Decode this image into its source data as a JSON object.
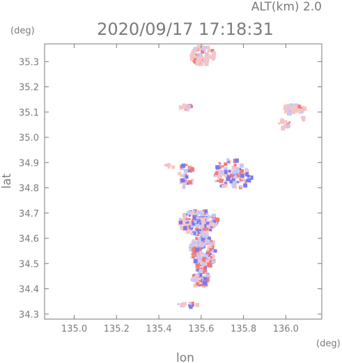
{
  "header": {
    "altitude_label": "ALT(km) 2.0",
    "timestamp": "2020/09/17 17:18:31"
  },
  "chart_data": {
    "type": "heatmap",
    "title": "2020/09/17 17:18:31",
    "subtitle": "ALT(km) 2.0",
    "xlabel": "lon",
    "ylabel": "lat",
    "xunit": "(deg)",
    "yunit": "(deg)",
    "xlim": [
      134.86,
      136.17
    ],
    "ylim": [
      34.28,
      35.37
    ],
    "xticks": [
      135.0,
      135.2,
      135.4,
      135.6,
      135.8,
      136.0
    ],
    "xtick_labels": [
      "135.0",
      "135.2",
      "135.4",
      "135.6",
      "135.8",
      "136.0"
    ],
    "yticks": [
      34.3,
      34.4,
      34.5,
      34.6,
      34.7,
      34.8,
      34.9,
      35.0,
      35.1,
      35.2,
      35.3
    ],
    "ytick_labels": [
      "34.3",
      "34.4",
      "34.5",
      "34.6",
      "34.7",
      "34.8",
      "34.9",
      "35.0",
      "35.1",
      "35.2",
      "35.3"
    ],
    "grid": false,
    "colors": {
      "positive": "#f07a7a",
      "light_positive": "#f6c4c4",
      "negative": "#7a7aee",
      "light_negative": "#c8c8f6",
      "axis": "#7a7a7a"
    },
    "clusters": [
      {
        "lon": 135.6,
        "lat": 35.33,
        "rx": 0.055,
        "ry": 0.04,
        "n": 90,
        "bias": 0.8,
        "speckle": 0.12
      },
      {
        "lon": 135.52,
        "lat": 35.125,
        "rx": 0.03,
        "ry": 0.01,
        "n": 12,
        "bias": 0.8,
        "speckle": 0.1
      },
      {
        "lon": 136.03,
        "lat": 35.12,
        "rx": 0.05,
        "ry": 0.02,
        "n": 50,
        "bias": 0.85,
        "speckle": 0.05
      },
      {
        "lon": 135.99,
        "lat": 35.06,
        "rx": 0.03,
        "ry": 0.02,
        "n": 16,
        "bias": 0.8,
        "speckle": 0.1
      },
      {
        "lon": 136.07,
        "lat": 35.075,
        "rx": 0.012,
        "ry": 0.012,
        "n": 5,
        "bias": 0.9,
        "speckle": 0.0
      },
      {
        "lon": 135.74,
        "lat": 34.86,
        "rx": 0.09,
        "ry": 0.06,
        "n": 110,
        "bias": 0.55,
        "speckle": 0.4
      },
      {
        "lon": 135.52,
        "lat": 34.85,
        "rx": 0.04,
        "ry": 0.05,
        "n": 30,
        "bias": 0.5,
        "speckle": 0.4
      },
      {
        "lon": 135.58,
        "lat": 34.67,
        "rx": 0.09,
        "ry": 0.05,
        "n": 180,
        "bias": 0.5,
        "speckle": 0.45
      },
      {
        "lon": 135.6,
        "lat": 34.55,
        "rx": 0.06,
        "ry": 0.07,
        "n": 170,
        "bias": 0.5,
        "speckle": 0.45
      },
      {
        "lon": 135.59,
        "lat": 34.45,
        "rx": 0.04,
        "ry": 0.04,
        "n": 70,
        "bias": 0.55,
        "speckle": 0.45
      },
      {
        "lon": 135.53,
        "lat": 34.34,
        "rx": 0.05,
        "ry": 0.01,
        "n": 14,
        "bias": 0.5,
        "speckle": 0.4
      },
      {
        "lon": 135.44,
        "lat": 34.89,
        "rx": 0.02,
        "ry": 0.01,
        "n": 6,
        "bias": 0.7,
        "speckle": 0.3
      }
    ]
  }
}
